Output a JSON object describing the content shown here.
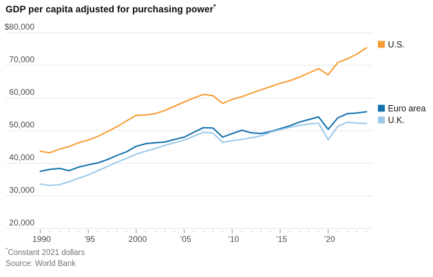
{
  "header": {
    "title": "GDP per capita adjusted for purchasing power",
    "footnote_marker": "*"
  },
  "footer": {
    "note_marker": "*",
    "note_text": "Constant 2021 dollars",
    "source": "Source: World Bank"
  },
  "legend": {
    "items": [
      "U.S.",
      "Euro area",
      "U.K."
    ]
  },
  "colors": {
    "background": "#FFFFFF",
    "grid": "#E8E8E8",
    "axis_text": "#4D4D4D",
    "major_tick": "#8C8C8C",
    "minor_tick": "#ACACAC",
    "title_text": "#0A0A0A",
    "footnote_text": "#757575",
    "legend_text": "#141414",
    "us_line": "#F79C33",
    "euro_line": "#1170AC",
    "uk_line": "#9CC9E9"
  },
  "chart_data": {
    "type": "line",
    "title": "GDP per capita adjusted for purchasing power*",
    "unit": "constant 2021 dollars",
    "ylabel": "",
    "xlabel": "",
    "grid": "horizontal",
    "legend_position": "right",
    "ylim": [
      20000,
      80000
    ],
    "yticks": [
      {
        "value": 20000,
        "label": "20,000"
      },
      {
        "value": 30000,
        "label": "30,000"
      },
      {
        "value": 40000,
        "label": "40,000"
      },
      {
        "value": 50000,
        "label": "50,000"
      },
      {
        "value": 60000,
        "label": "60,000"
      },
      {
        "value": 70000,
        "label": "70,000"
      },
      {
        "value": 80000,
        "label": "$80,000"
      }
    ],
    "xticks": [
      {
        "value": 1990,
        "label": "1990"
      },
      {
        "value": 1995,
        "label": "’95"
      },
      {
        "value": 2000,
        "label": "2000"
      },
      {
        "value": 2005,
        "label": "’05"
      },
      {
        "value": 2010,
        "label": "’10"
      },
      {
        "value": 2015,
        "label": "’15"
      },
      {
        "value": 2020,
        "label": "’20"
      }
    ],
    "minor_ticks_every_year": true,
    "x": [
      1990,
      1991,
      1992,
      1993,
      1994,
      1995,
      1996,
      1997,
      1998,
      1999,
      2000,
      2001,
      2002,
      2003,
      2004,
      2005,
      2006,
      2007,
      2008,
      2009,
      2010,
      2011,
      2012,
      2013,
      2014,
      2015,
      2016,
      2017,
      2018,
      2019,
      2020,
      2021,
      2022,
      2023,
      2024
    ],
    "series": [
      {
        "name": "U.S.",
        "color": "#F79C33",
        "values": [
          43700,
          43200,
          44300,
          45100,
          46300,
          47100,
          48200,
          49700,
          51200,
          53000,
          54700,
          54800,
          55200,
          56200,
          57500,
          58800,
          60000,
          61100,
          60700,
          58300,
          59600,
          60400,
          61500,
          62500,
          63500,
          64500,
          65300,
          66400,
          67700,
          69000,
          67100,
          70900,
          72000,
          73500,
          75400
        ]
      },
      {
        "name": "Euro area",
        "color": "#1170AC",
        "values": [
          37500,
          38100,
          38400,
          37700,
          38800,
          39500,
          40100,
          41100,
          42400,
          43500,
          45200,
          46000,
          46300,
          46500,
          47300,
          48000,
          49500,
          50900,
          50800,
          48000,
          49100,
          50100,
          49300,
          49100,
          49700,
          50600,
          51500,
          52600,
          53400,
          54200,
          50400,
          53900,
          55200,
          55400,
          55800
        ]
      },
      {
        "name": "U.K.",
        "color": "#9CC9E9",
        "values": [
          33600,
          33200,
          33400,
          34300,
          35400,
          36400,
          37700,
          39000,
          40300,
          41500,
          42800,
          43700,
          44500,
          45500,
          46300,
          47100,
          48300,
          49500,
          49200,
          46400,
          46900,
          47300,
          47800,
          48400,
          49500,
          50300,
          51000,
          51600,
          52000,
          52300,
          47200,
          51300,
          52600,
          52300,
          52200
        ]
      }
    ]
  }
}
